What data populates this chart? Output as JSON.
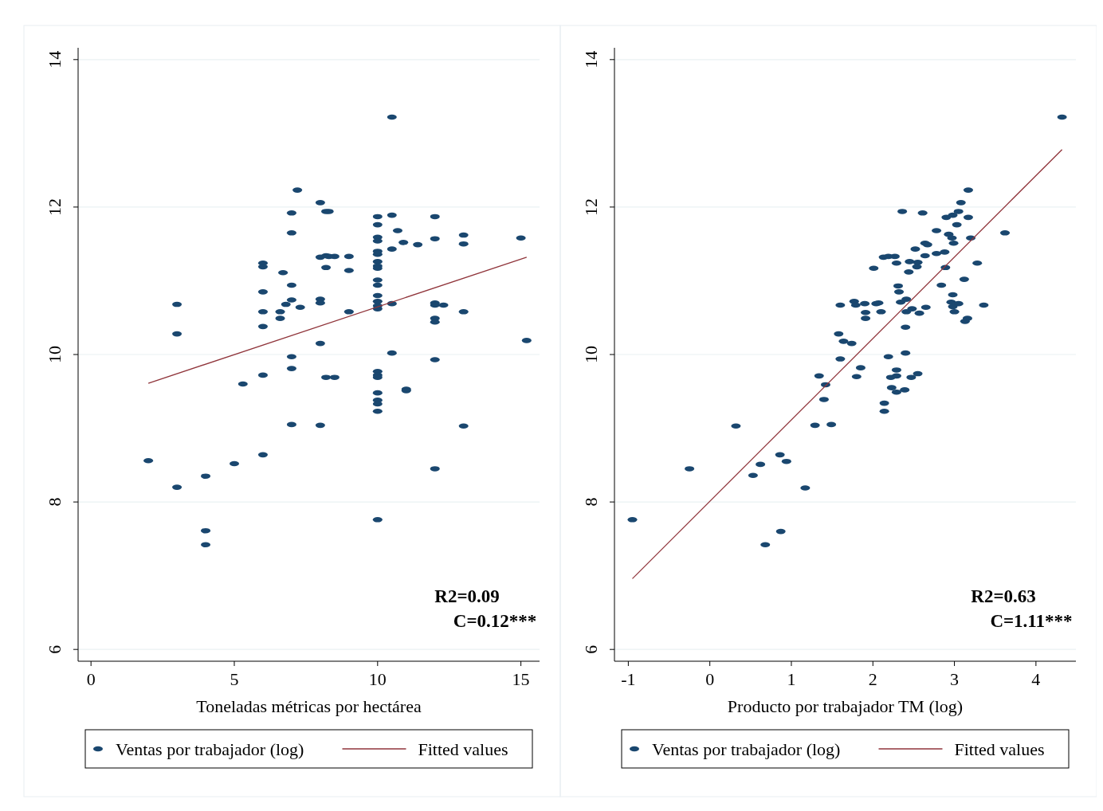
{
  "chart_data": [
    {
      "type": "scatter",
      "xlabel": "Toneladas métricas por hectárea",
      "xlim": [
        -0.45,
        15.65
      ],
      "xticks": [
        0,
        5,
        10,
        15
      ],
      "ylim": [
        5.84,
        14.16
      ],
      "yticks": [
        6,
        8,
        10,
        12,
        14
      ],
      "grid": "y",
      "legend": "bottom",
      "annotations": [
        "R2=0.09",
        "C=0.12***"
      ],
      "series": [
        {
          "name": "Ventas por trabajador (log)",
          "color": "#1a476f",
          "marker": "circle",
          "x": [
            2,
            3,
            3,
            3,
            4,
            4,
            4,
            5,
            5.3,
            6,
            6,
            6,
            6,
            6,
            6,
            6,
            6.6,
            6.6,
            6.7,
            6.8,
            7,
            7,
            7,
            7,
            7,
            7,
            7,
            7.2,
            7.3,
            8,
            8,
            8,
            8,
            8,
            8,
            8.2,
            8.3,
            8.2,
            8.3,
            8.5,
            8.2,
            9,
            9,
            9,
            8.2,
            8.5,
            10,
            10,
            10,
            10,
            10,
            10,
            10,
            10,
            10,
            10,
            10,
            10,
            10,
            10,
            10,
            10,
            10,
            10,
            10,
            10,
            10,
            10,
            10,
            10.5,
            10.5,
            10.5,
            10.7,
            10.9,
            11.4,
            10.5,
            10.5,
            11,
            11,
            12,
            12,
            12,
            12,
            12.3,
            12,
            12,
            12,
            12,
            13,
            13,
            13,
            13,
            15,
            15.2
          ],
          "values": [
            8.56,
            10.68,
            10.28,
            8.2,
            8.35,
            7.61,
            7.42,
            8.52,
            9.6,
            11.24,
            11.19,
            10.85,
            10.58,
            10.38,
            9.72,
            8.64,
            10.58,
            10.49,
            11.11,
            10.68,
            11.92,
            11.65,
            10.94,
            10.74,
            9.97,
            9.81,
            9.05,
            12.23,
            10.64,
            12.06,
            11.32,
            10.75,
            10.7,
            10.15,
            9.04,
            11.94,
            11.94,
            11.34,
            11.33,
            11.33,
            11.18,
            11.33,
            11.14,
            10.58,
            9.69,
            9.69,
            11.87,
            11.76,
            11.59,
            11.54,
            11.4,
            11.36,
            11.26,
            11.2,
            11.17,
            11.01,
            10.94,
            10.8,
            10.72,
            10.66,
            10.62,
            9.77,
            9.72,
            9.69,
            9.48,
            9.38,
            9.33,
            9.23,
            7.76,
            13.22,
            11.89,
            11.43,
            11.68,
            11.52,
            11.49,
            10.69,
            10.02,
            9.53,
            9.51,
            11.87,
            11.57,
            10.7,
            10.67,
            10.67,
            10.49,
            10.44,
            9.93,
            8.45,
            11.62,
            11.5,
            10.58,
            9.03,
            11.58,
            10.19
          ]
        },
        {
          "name": "Fitted values",
          "type": "line",
          "color": "#90353b",
          "x": [
            2,
            15.2
          ],
          "values": [
            9.61,
            11.32
          ]
        }
      ]
    },
    {
      "type": "scatter",
      "xlabel": "Producto por trabajador TM (log)",
      "xlim": [
        -1.17,
        4.49
      ],
      "xticks": [
        -1,
        0,
        1,
        2,
        3,
        4
      ],
      "ylim": [
        5.84,
        14.16
      ],
      "yticks": [
        6,
        8,
        10,
        12,
        14
      ],
      "grid": "y",
      "legend": "bottom",
      "annotations": [
        "R2=0.63",
        "C=1.11***"
      ],
      "series": [
        {
          "name": "Ventas por trabajador (log)",
          "color": "#1a476f",
          "marker": "circle",
          "x": [
            2.13,
            2.19,
            2.27,
            2.29,
            2.45,
            2.55,
            2.44,
            2.54,
            2.52,
            2.64,
            2.64,
            2.67,
            2.78,
            2.88,
            2.78,
            2.93,
            2.97,
            2.99,
            3.03,
            2.9,
            2.98,
            3.05,
            3.17,
            3.08,
            3.17,
            2.36,
            2.61,
            3.2,
            3.62,
            4.32,
            2.01,
            2.89,
            3.28,
            3.12,
            2.84,
            2.31,
            2.32,
            2.98,
            1.6,
            1.77,
            1.79,
            1.9,
            2.04,
            2.07,
            1.91,
            2.1,
            1.91,
            2.34,
            2.41,
            2.48,
            2.41,
            2.57,
            2.65,
            2.96,
            3.05,
            2.98,
            3,
            3.36,
            3.16,
            3.13,
            2.4,
            1.58,
            1.64,
            1.74,
            1.6,
            1.34,
            1.42,
            1.4,
            1.29,
            1.49,
            0.32,
            -0.25,
            -0.95,
            0.86,
            0.94,
            0.62,
            0.53,
            1.17,
            0.87,
            0.68,
            1.85,
            1.8,
            2.19,
            2.4,
            2.29,
            2.22,
            2.29,
            2.47,
            2.55,
            2.23,
            2.29,
            2.39,
            2.14,
            2.14
          ],
          "values": [
            11.32,
            11.33,
            11.33,
            11.24,
            11.26,
            11.25,
            11.12,
            11.19,
            11.43,
            11.34,
            11.51,
            11.49,
            11.37,
            11.39,
            11.68,
            11.63,
            11.58,
            11.51,
            11.76,
            11.86,
            11.89,
            11.94,
            11.86,
            12.06,
            12.23,
            11.94,
            11.92,
            11.58,
            11.65,
            13.22,
            11.17,
            11.18,
            11.24,
            11.02,
            10.94,
            10.93,
            10.85,
            10.81,
            10.67,
            10.72,
            10.67,
            10.69,
            10.69,
            10.7,
            10.57,
            10.58,
            10.49,
            10.71,
            10.75,
            10.62,
            10.58,
            10.56,
            10.64,
            10.71,
            10.69,
            10.65,
            10.58,
            10.67,
            10.49,
            10.45,
            10.37,
            10.28,
            10.18,
            10.15,
            9.94,
            9.71,
            9.59,
            9.39,
            9.04,
            9.05,
            9.03,
            8.45,
            7.76,
            8.64,
            8.55,
            8.51,
            8.36,
            8.19,
            7.6,
            7.42,
            9.82,
            9.7,
            9.97,
            10.02,
            9.79,
            9.69,
            9.71,
            9.69,
            9.74,
            9.55,
            9.49,
            9.52,
            9.34,
            9.23
          ]
        },
        {
          "name": "Fitted values",
          "type": "line",
          "color": "#90353b",
          "x": [
            -0.95,
            4.32
          ],
          "values": [
            6.96,
            12.78
          ]
        }
      ]
    }
  ]
}
